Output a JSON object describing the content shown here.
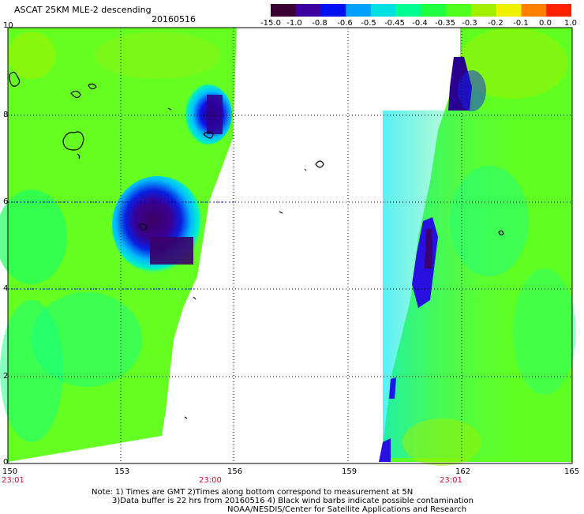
{
  "header": {
    "title": "ASCAT 25KM MLE-2 descending",
    "date": "20160516"
  },
  "colorbar": {
    "labels": [
      "-15.0",
      "-1.0",
      "-0.8",
      "-0.6",
      "-0.5",
      "-0.45",
      "-0.4",
      "-0.35",
      "-0.3",
      "-0.2",
      "-0.1",
      "0.0",
      "1.0"
    ],
    "colors": [
      "#3a0032",
      "#3c00a0",
      "#0010f0",
      "#00a0ff",
      "#00e0e0",
      "#00ff90",
      "#20ff40",
      "#50ff20",
      "#a0f000",
      "#f0f000",
      "#ff8000",
      "#ff2000"
    ]
  },
  "axes": {
    "x_labels": [
      "150",
      "153",
      "156",
      "159",
      "162",
      "165"
    ],
    "y_labels": [
      "0",
      "2",
      "4",
      "6",
      "8",
      "10"
    ]
  },
  "times": [
    "23:01",
    "23:00",
    "23:01"
  ],
  "notes": {
    "line1": "Note: 1) Times are GMT 2)Times along bottom correspond to measurement at 5N",
    "line2": "3)Data buffer is 22 hrs from 20160516 4) Black wind barbs indicate possible contamination",
    "line3": "NOAA/NESDIS/Center for Satellite Applications and Research"
  }
}
